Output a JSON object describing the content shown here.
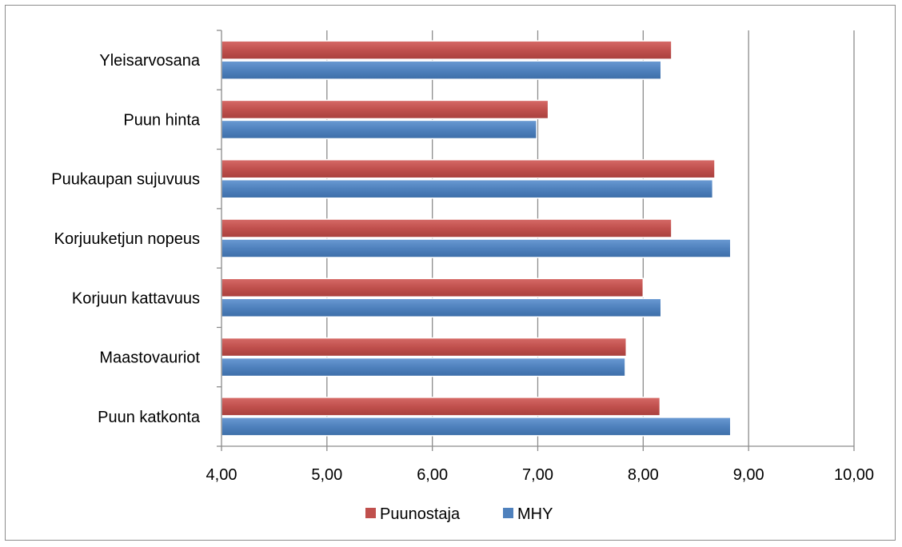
{
  "chart_data": {
    "type": "bar",
    "orientation": "horizontal",
    "categories": [
      "Yleisarvosana",
      "Puun hinta",
      "Puukaupan sujuvuus",
      "Korjuuketjun nopeus",
      "Korjuun kattavuus",
      "Maastovauriot",
      "Puun katkonta"
    ],
    "series": [
      {
        "name": "Puunostaja",
        "color": "#c0504d",
        "values": [
          8.27,
          7.1,
          8.68,
          8.27,
          8.0,
          7.84,
          8.16
        ]
      },
      {
        "name": "MHY",
        "color": "#4f81bd",
        "values": [
          8.17,
          6.99,
          8.66,
          8.83,
          8.17,
          7.83,
          8.83
        ]
      }
    ],
    "xlim": [
      4,
      10
    ],
    "xticks": [
      4,
      5,
      6,
      7,
      8,
      9,
      10
    ],
    "xtick_labels": [
      "4,00",
      "5,00",
      "6,00",
      "7,00",
      "8,00",
      "9,00",
      "10,00"
    ],
    "grid": true,
    "legend_position": "bottom"
  }
}
